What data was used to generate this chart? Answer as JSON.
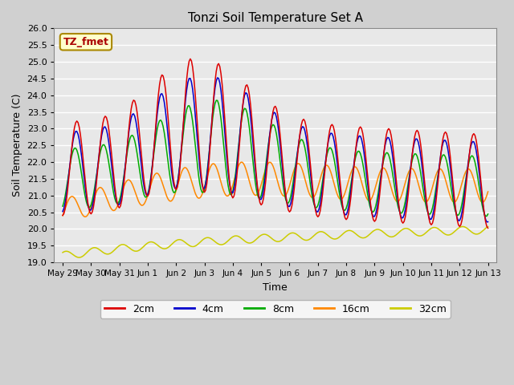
{
  "title": "Tonzi Soil Temperature Set A",
  "xlabel": "Time",
  "ylabel": "Soil Temperature (C)",
  "ylim": [
    19.0,
    26.0
  ],
  "yticks": [
    19.0,
    19.5,
    20.0,
    20.5,
    21.0,
    21.5,
    22.0,
    22.5,
    23.0,
    23.5,
    24.0,
    24.5,
    25.0,
    25.5,
    26.0
  ],
  "xtick_labels": [
    "May 29",
    "May 30",
    "May 31",
    "Jun 1",
    "Jun 2",
    "Jun 3",
    "Jun 4",
    "Jun 5",
    "Jun 6",
    "Jun 7",
    "Jun 8",
    "Jun 9",
    "Jun 10",
    "Jun 11",
    "Jun 12",
    "Jun 13"
  ],
  "line_colors": [
    "#dd0000",
    "#0000cc",
    "#00aa00",
    "#ff8800",
    "#cccc00"
  ],
  "line_labels": [
    "2cm",
    "4cm",
    "8cm",
    "16cm",
    "32cm"
  ],
  "annotation_text": "TZ_fmet",
  "annotation_color": "#aa0000",
  "annotation_bg": "#ffffcc",
  "annotation_border": "#aa8800",
  "fig_bg_color": "#d0d0d0",
  "plot_bg_color": "#e8e8e8",
  "grid_color": "#ffffff"
}
